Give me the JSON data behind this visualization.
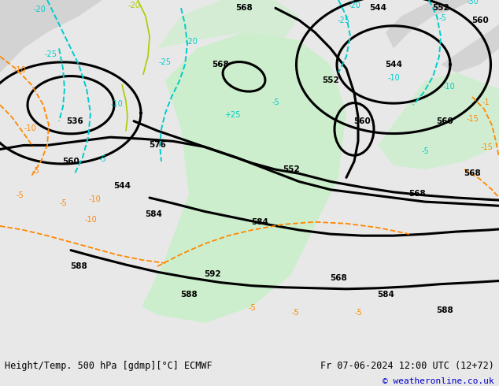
{
  "title_left": "Height/Temp. 500 hPa [gdmp][°C] ECMWF",
  "title_right": "Fr 07-06-2024 12:00 UTC (12+72)",
  "copyright": "© weatheronline.co.uk",
  "bg_color": "#e8e8e8",
  "map_bg": "#ffffff",
  "green_fill": "#c8f0c8",
  "gray_fill": "#b0b0b0",
  "contour_black": "#000000",
  "contour_cyan": "#00cccc",
  "contour_orange": "#ff8800",
  "contour_yellow_green": "#aacc00",
  "contour_red_dashed": "#cc0000",
  "fig_width": 6.34,
  "fig_height": 4.9,
  "dpi": 100,
  "bottom_bar_height": 0.08,
  "font_size_bottom": 8.5,
  "font_size_copyright": 8.0
}
